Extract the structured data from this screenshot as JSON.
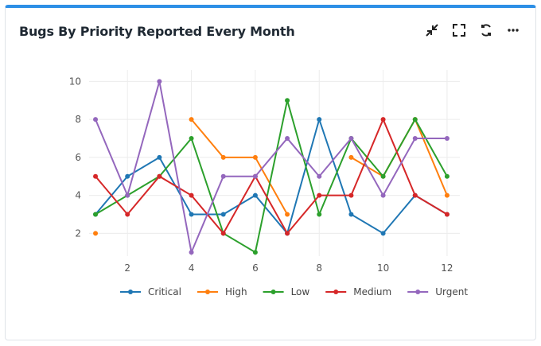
{
  "header": {
    "title": "Bugs By Priority Reported Every Month",
    "icons": [
      "minimize-icon",
      "fullscreen-icon",
      "refresh-icon",
      "more-icon"
    ]
  },
  "chart_data": {
    "type": "line",
    "title": "Bugs By Priority Reported Every Month",
    "xlabel": "",
    "ylabel": "",
    "x": [
      1,
      2,
      3,
      4,
      5,
      6,
      7,
      8,
      9,
      10,
      11,
      12
    ],
    "xticks": [
      2,
      4,
      6,
      8,
      10,
      12
    ],
    "yticks": [
      2,
      4,
      6,
      8,
      10
    ],
    "xlim": [
      0.8,
      12.4
    ],
    "ylim": [
      0.8,
      10.6
    ],
    "grid": true,
    "legend": "bottom",
    "series": [
      {
        "name": "Critical",
        "color": "#1f77b4",
        "values": [
          3,
          5,
          6,
          3,
          3,
          4,
          2,
          8,
          3,
          2,
          4,
          3
        ]
      },
      {
        "name": "High",
        "color": "#ff7f0e",
        "values": [
          2,
          null,
          null,
          8,
          6,
          6,
          3,
          null,
          6,
          5,
          8,
          4
        ]
      },
      {
        "name": "Low",
        "color": "#2ca02c",
        "values": [
          3,
          4,
          5,
          7,
          2,
          1,
          9,
          3,
          7,
          5,
          8,
          5
        ]
      },
      {
        "name": "Medium",
        "color": "#d62728",
        "values": [
          5,
          3,
          5,
          4,
          2,
          5,
          2,
          4,
          4,
          8,
          4,
          3
        ]
      },
      {
        "name": "Urgent",
        "color": "#9467bd",
        "values": [
          8,
          4,
          10,
          1,
          5,
          5,
          7,
          5,
          7,
          4,
          7,
          7
        ]
      }
    ]
  }
}
